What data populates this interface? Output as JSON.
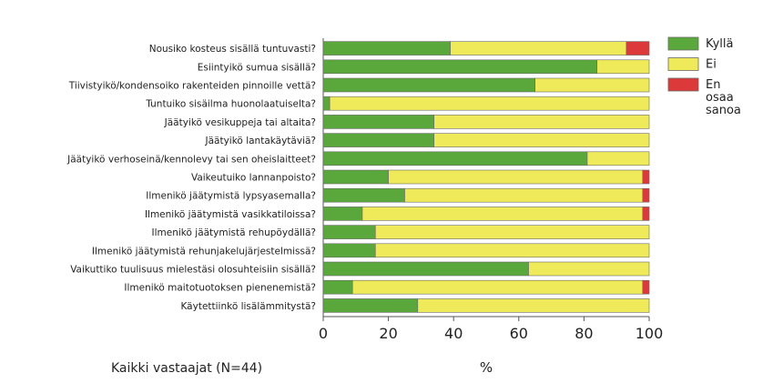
{
  "chart_data": {
    "type": "bar",
    "stacked": true,
    "orientation": "horizontal",
    "categories": [
      "Nousiko kosteus sisällä tuntuvasti?",
      "Esiintyikö sumua sisällä?",
      "Tiivistyikö/kondensoiko rakenteiden pinnoille vettä?",
      "Tuntuiko sisäilma huonolaatuiselta?",
      "Jäätyikö vesikuppeja tai altaita?",
      "Jäätyikö lantakäytäviä?",
      "Jäätyikö verhoseinä/kennolevy tai sen oheislaitteet?",
      "Vaikeutuiko lannanpoisto?",
      "Ilmenikö jäätymistä lypsyasemalla?",
      "Ilmenikö jäätymistä vasikkatiloissa?",
      "Ilmenikö jäätymistä rehupöydällä?",
      "Ilmenikö jäätymistä rehunjakelujärjestelmissä?",
      "Vaikuttiko tuulisuus mielestäsi olosuhteisiin sisällä?",
      "Ilmenikö maitotuotoksen pienenemistä?",
      "Käytettiinkö lisälämmitystä?"
    ],
    "series": [
      {
        "name": "Kyllä",
        "color": "#5aa83c",
        "values": [
          39,
          84,
          65,
          2,
          34,
          34,
          81,
          20,
          25,
          12,
          16,
          16,
          63,
          9,
          29
        ]
      },
      {
        "name": "Ei",
        "color": "#eeea5a",
        "values": [
          54,
          16,
          35,
          98,
          66,
          66,
          19,
          78,
          73,
          86,
          84,
          84,
          37,
          89,
          71
        ]
      },
      {
        "name": "En osaa sanoa",
        "color": "#dc3a3a",
        "values": [
          7,
          0,
          0,
          0,
          0,
          0,
          0,
          2,
          2,
          2,
          0,
          0,
          0,
          2,
          0
        ]
      }
    ],
    "xlim": [
      0,
      100
    ],
    "xticks": [
      0,
      20,
      40,
      60,
      80,
      100
    ],
    "xlabel": "%",
    "legend": {
      "position": "right",
      "entries": [
        {
          "label_lines": [
            "Kyllä"
          ],
          "color": "#5aa83c"
        },
        {
          "label_lines": [
            "Ei"
          ],
          "color": "#eeea5a"
        },
        {
          "label_lines": [
            "En",
            "osaa",
            "sanoa"
          ],
          "color": "#dc3a3a"
        }
      ]
    },
    "footnote": "Kaikki vastaajat (N=44)"
  }
}
